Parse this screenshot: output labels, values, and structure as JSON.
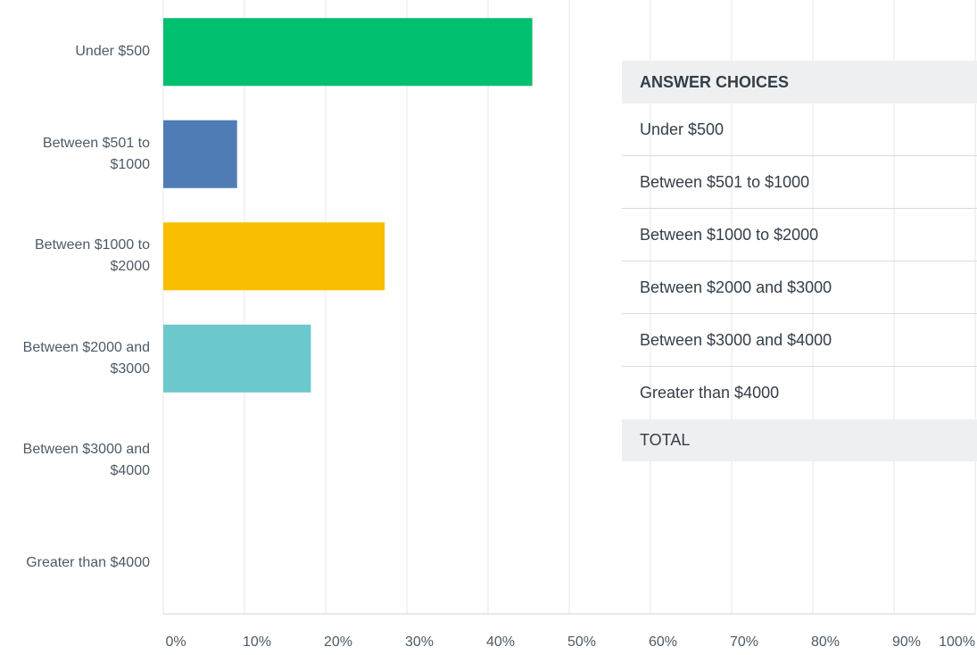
{
  "chart_data": {
    "type": "bar",
    "orientation": "horizontal",
    "categories": [
      "Under $500",
      "Between $501 to $1000",
      "Between $1000 to $2000",
      "Between $2000 and $3000",
      "Between $3000 and $4000",
      "Greater than $4000"
    ],
    "values": [
      45.45,
      9.09,
      27.27,
      18.18,
      0,
      0
    ],
    "colors": [
      "#00bf6f",
      "#507cb6",
      "#f9be00",
      "#6bc8cd"
    ],
    "xlim": [
      0,
      100
    ],
    "xticks": [
      {
        "value": 0,
        "label": "0%"
      },
      {
        "value": 10,
        "label": "10%"
      },
      {
        "value": 20,
        "label": "20%"
      },
      {
        "value": 30,
        "label": "30%"
      },
      {
        "value": 40,
        "label": "40%"
      },
      {
        "value": 50,
        "label": "50%"
      },
      {
        "value": 60,
        "label": "60%"
      },
      {
        "value": 70,
        "label": "70%"
      },
      {
        "value": 80,
        "label": "80%"
      },
      {
        "value": 90,
        "label": "90%"
      },
      {
        "value": 100,
        "label": "100%"
      }
    ],
    "grid": true
  },
  "table": {
    "header": "ANSWER CHOICES",
    "rows": [
      "Under $500",
      "Between $501 to $1000",
      "Between $1000 to $2000",
      "Between $2000 and $3000",
      "Between $3000 and $4000",
      "Greater than $4000"
    ],
    "total": "TOTAL"
  }
}
